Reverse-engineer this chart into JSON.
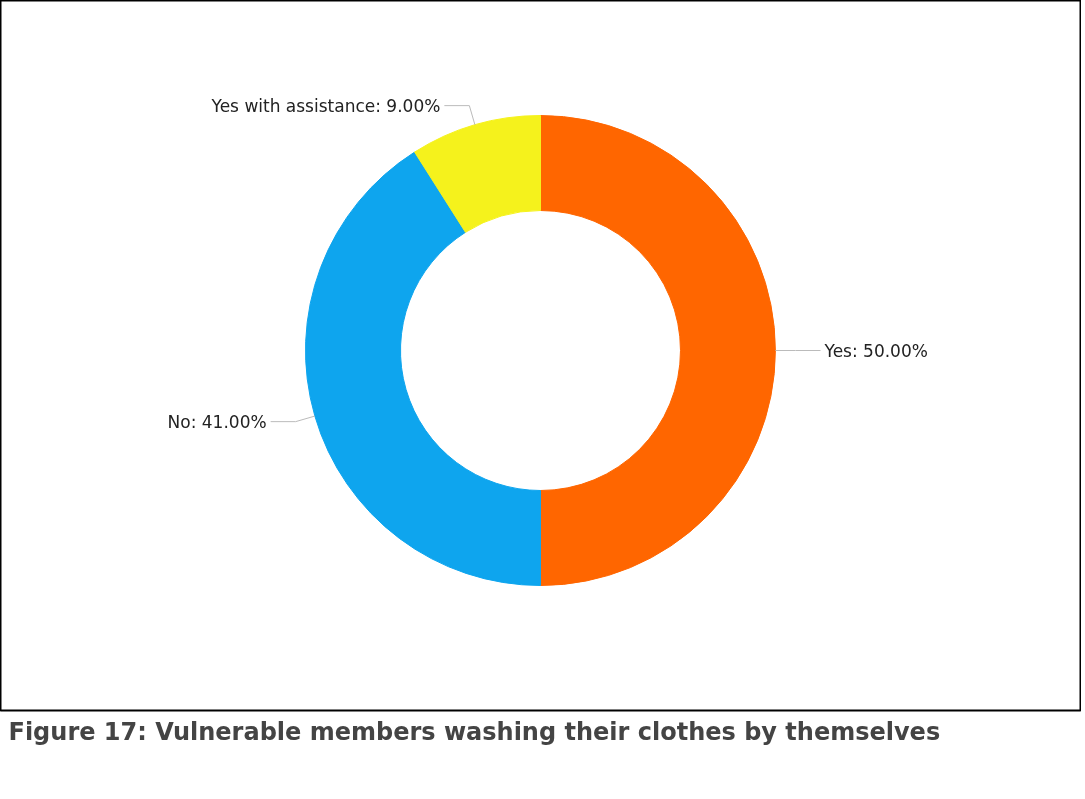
{
  "chart_data": {
    "type": "donut",
    "title": "Figure 17: Vulnerable members washing their clothes by themselves",
    "categories": [
      "Yes",
      "No",
      "Yes with assistance"
    ],
    "values": [
      50.0,
      41.0,
      9.0
    ],
    "colors": [
      "#ff6600",
      "#0ea5ee",
      "#f5f21c"
    ],
    "value_labels": [
      "50.00%",
      "41.00%",
      "9.00%"
    ]
  }
}
